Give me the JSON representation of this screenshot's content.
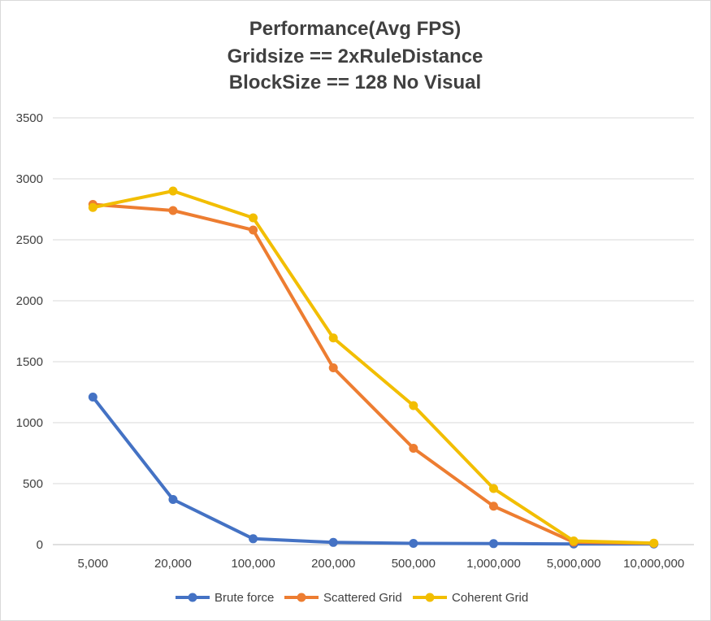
{
  "chart_data": {
    "type": "line",
    "title_lines": [
      "Performance(Avg FPS)",
      "Gridsize == 2xRuleDistance",
      "BlockSize == 128  No Visual"
    ],
    "xlabel": "",
    "ylabel": "",
    "categories": [
      "5,000",
      "20,000",
      "100,000",
      "200,000",
      "500,000",
      "1,000,000",
      "5,000,000",
      "10,000,000"
    ],
    "y_ticks": [
      "0",
      "500",
      "1000",
      "1500",
      "2000",
      "2500",
      "3000",
      "3500"
    ],
    "ylim": [
      0,
      3500
    ],
    "grid": true,
    "legend_position": "bottom",
    "series": [
      {
        "name": "Brute force",
        "color": "#4472C4",
        "values": [
          1210,
          370,
          48,
          18,
          10,
          8,
          5,
          5
        ]
      },
      {
        "name": "Scattered Grid",
        "color": "#ED7D31",
        "values": [
          2790,
          2740,
          2580,
          1450,
          790,
          315,
          20,
          10
        ]
      },
      {
        "name": "Coherent Grid",
        "color": "#F2BE00",
        "values": [
          2765,
          2900,
          2680,
          1695,
          1140,
          460,
          30,
          12
        ]
      }
    ]
  }
}
